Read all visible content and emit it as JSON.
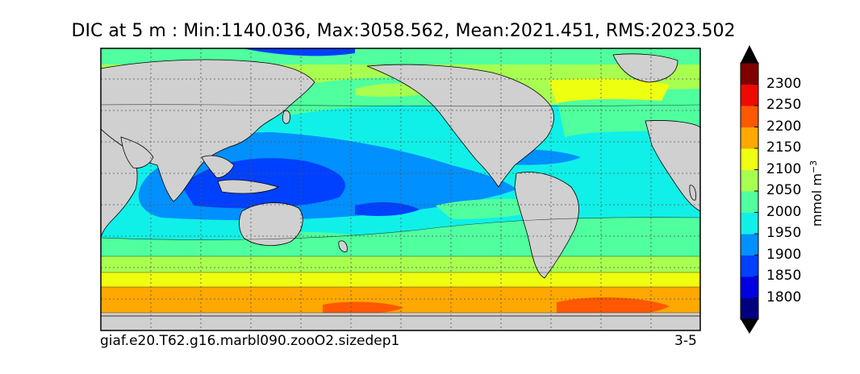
{
  "title": "DIC at 5 m : Min:1140.036, Max:3058.562, Mean:2021.451, RMS:2023.502",
  "footer": {
    "left": "giaf.e20.T62.g16.marbl090.zooO2.sizedep1",
    "right": "3-5"
  },
  "colorbar": {
    "unit_base": "mmol m",
    "unit_exp": "−3",
    "tick_labels": [
      "2300",
      "2250",
      "2200",
      "2150",
      "2100",
      "2050",
      "2000",
      "1950",
      "1900",
      "1850",
      "1800"
    ],
    "levels": [
      {
        "color": "#00007f"
      },
      {
        "color": "#0000e0"
      },
      {
        "color": "#0040ff"
      },
      {
        "color": "#0090ff"
      },
      {
        "color": "#10f0e8"
      },
      {
        "color": "#50ff9e"
      },
      {
        "color": "#a8ff50"
      },
      {
        "color": "#eeff10"
      },
      {
        "color": "#ffa800"
      },
      {
        "color": "#ff5800"
      },
      {
        "color": "#ee0a00"
      },
      {
        "color": "#800000"
      }
    ]
  },
  "map_colors": {
    "land": "#d0d0d0",
    "frame": "#000000",
    "grid": "#555555"
  }
}
